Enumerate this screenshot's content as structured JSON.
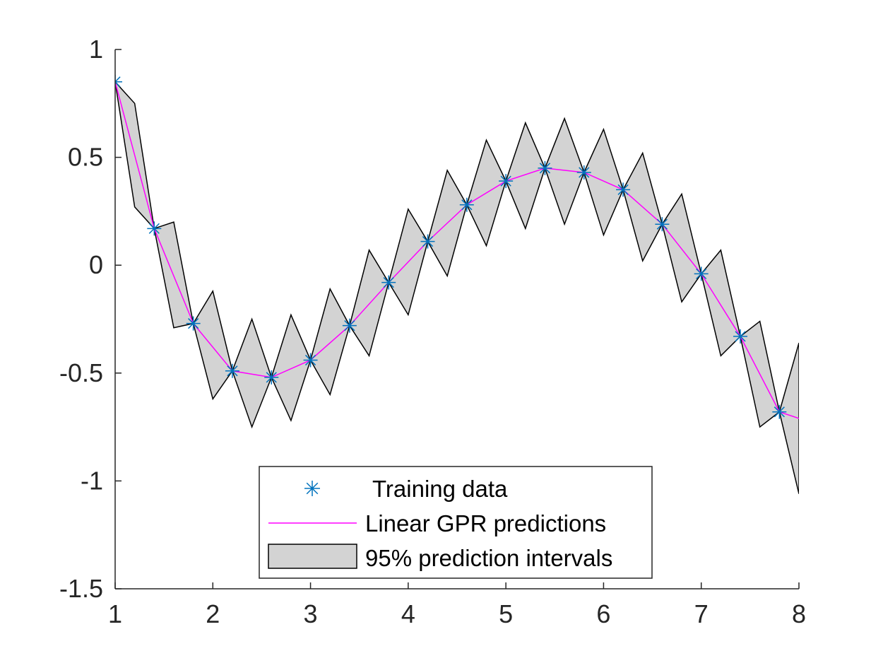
{
  "chart_data": {
    "type": "line",
    "title": "",
    "xlabel": "",
    "ylabel": "",
    "xlim": [
      1,
      8
    ],
    "ylim": [
      -1.5,
      1
    ],
    "xticks": [
      "1",
      "2",
      "3",
      "4",
      "5",
      "6",
      "7",
      "8"
    ],
    "yticks": [
      "1",
      "0.5",
      "0",
      "-0.5",
      "-1",
      "-1.5"
    ],
    "grid": false,
    "legend_position": "bottom-center",
    "series": [
      {
        "name": "Training data",
        "kind": "marker",
        "marker": "asterisk",
        "color": "#0072BD",
        "x": [
          1,
          1.4,
          1.8,
          2.2,
          2.6,
          3,
          3.4,
          3.8,
          4.2,
          4.6,
          5,
          5.4,
          5.8,
          6.2,
          6.6,
          7,
          7.4,
          7.8
        ],
        "y": [
          0.85,
          0.17,
          -0.27,
          -0.49,
          -0.52,
          -0.44,
          -0.28,
          -0.08,
          0.11,
          0.28,
          0.39,
          0.45,
          0.43,
          0.35,
          0.19,
          -0.04,
          -0.33,
          -0.68
        ]
      },
      {
        "name": "Linear GPR predictions",
        "kind": "line",
        "color": "#FF00FF",
        "x": [
          1,
          1.4,
          1.8,
          2.2,
          2.6,
          3,
          3.4,
          3.8,
          4.2,
          4.6,
          5,
          5.4,
          5.8,
          6.2,
          6.6,
          7,
          7.4,
          7.8,
          8
        ],
        "y": [
          0.85,
          0.17,
          -0.27,
          -0.49,
          -0.52,
          -0.44,
          -0.28,
          -0.08,
          0.11,
          0.28,
          0.39,
          0.45,
          0.43,
          0.35,
          0.19,
          -0.04,
          -0.33,
          -0.68,
          -0.71
        ]
      },
      {
        "name": "95% prediction intervals",
        "kind": "band",
        "color": "#D3D3D3",
        "edge_color": "#000000",
        "x": [
          1,
          1.2,
          1.4,
          1.6,
          1.8,
          2,
          2.2,
          2.4,
          2.6,
          2.8,
          3,
          3.2,
          3.4,
          3.6,
          3.8,
          4,
          4.2,
          4.4,
          4.6,
          4.8,
          5,
          5.2,
          5.4,
          5.6,
          5.8,
          6,
          6.2,
          6.4,
          6.6,
          6.8,
          7,
          7.2,
          7.4,
          7.6,
          7.8,
          8
        ],
        "upper": [
          0.85,
          0.75,
          0.17,
          0.2,
          -0.27,
          -0.12,
          -0.49,
          -0.25,
          -0.52,
          -0.23,
          -0.44,
          -0.11,
          -0.28,
          0.07,
          -0.08,
          0.26,
          0.11,
          0.44,
          0.28,
          0.58,
          0.39,
          0.66,
          0.45,
          0.68,
          0.43,
          0.63,
          0.35,
          0.52,
          0.19,
          0.33,
          -0.04,
          0.07,
          -0.33,
          -0.26,
          -0.68,
          -0.36
        ],
        "lower": [
          0.85,
          0.27,
          0.17,
          -0.29,
          -0.27,
          -0.62,
          -0.49,
          -0.75,
          -0.52,
          -0.72,
          -0.44,
          -0.6,
          -0.28,
          -0.42,
          -0.08,
          -0.23,
          0.11,
          -0.05,
          0.28,
          0.09,
          0.39,
          0.17,
          0.45,
          0.19,
          0.43,
          0.14,
          0.35,
          0.02,
          0.19,
          -0.17,
          -0.04,
          -0.42,
          -0.33,
          -0.75,
          -0.68,
          -1.06
        ]
      }
    ]
  }
}
